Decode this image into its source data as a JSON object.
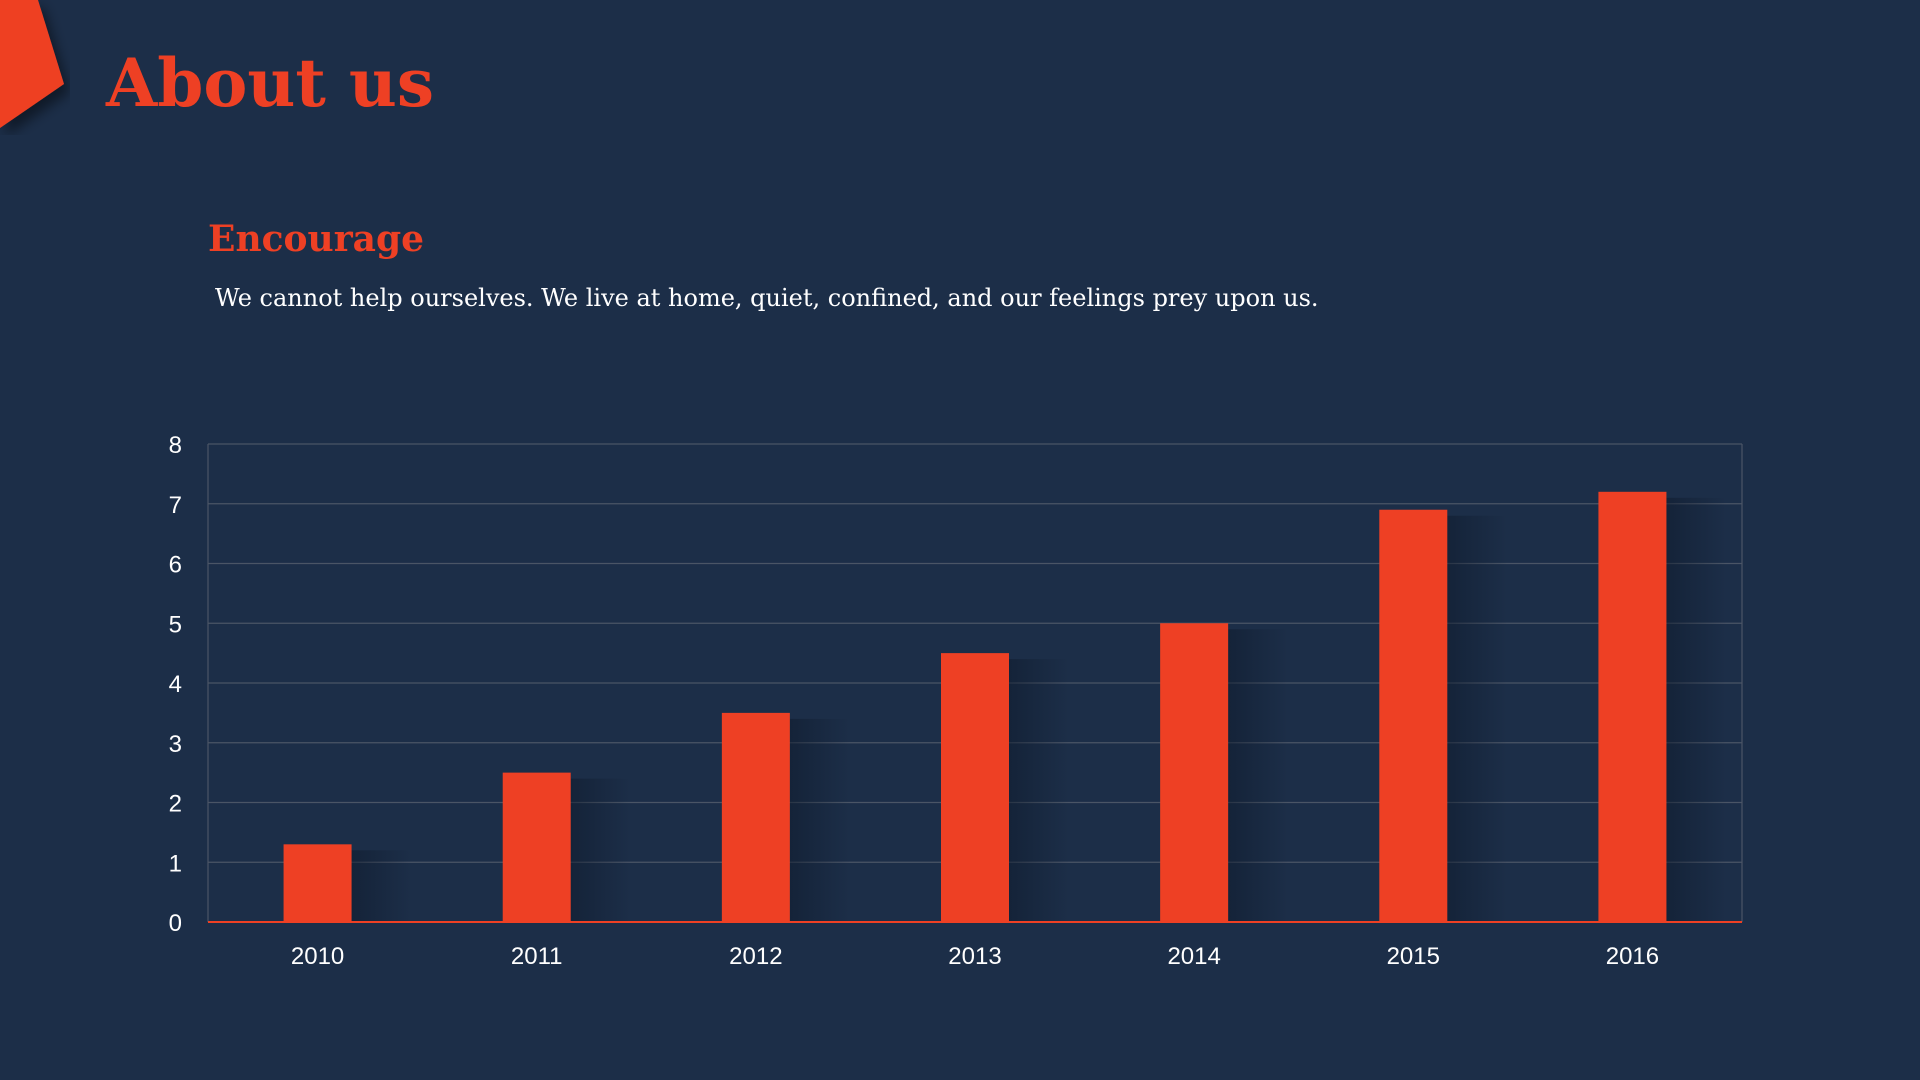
{
  "slide": {
    "title": "About us",
    "section_heading": "Encourage",
    "body_text": "We cannot help ourselves. We live at home, quiet, confined, and our feelings prey upon us."
  },
  "colors": {
    "background": "#1c2e48",
    "accent": "#ee4024",
    "text": "#ffffff",
    "gridline": "#4a5566"
  },
  "chart_data": {
    "type": "bar",
    "categories": [
      "2010",
      "2011",
      "2012",
      "2013",
      "2014",
      "2015",
      "2016"
    ],
    "values": [
      1.3,
      2.5,
      3.5,
      4.5,
      5.0,
      6.9,
      7.2
    ],
    "yticks": [
      "0",
      "1",
      "2",
      "3",
      "4",
      "5",
      "6",
      "7",
      "8"
    ],
    "ylim": [
      0,
      8
    ],
    "grid": true,
    "legend": "none",
    "bar_color": "#ee4024"
  }
}
